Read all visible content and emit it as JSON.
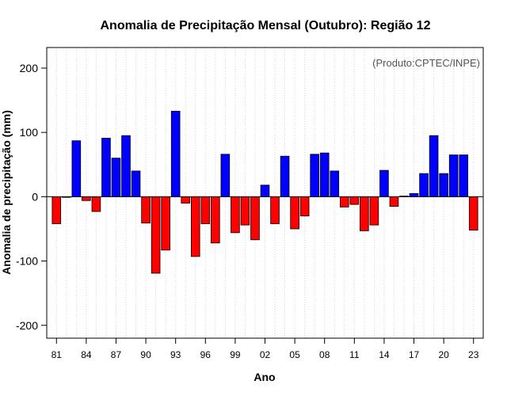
{
  "chart_data": {
    "type": "bar",
    "title": "Anomalia de Precipitação Mensal (Outubro): Região 12",
    "xlabel": "Ano",
    "ylabel": "Anomalia de precipitação (mm)",
    "credit": "(Produto:CPTEC/INPE)",
    "ylim": [
      -220,
      232
    ],
    "yticks": [
      -200,
      -100,
      0,
      100,
      200
    ],
    "x": [
      1981,
      1982,
      1983,
      1984,
      1985,
      1986,
      1987,
      1988,
      1989,
      1990,
      1991,
      1992,
      1993,
      1994,
      1995,
      1996,
      1997,
      1998,
      1999,
      2000,
      2001,
      2002,
      2003,
      2004,
      2005,
      2006,
      2007,
      2008,
      2009,
      2010,
      2011,
      2012,
      2013,
      2014,
      2015,
      2016,
      2017,
      2018,
      2019,
      2020,
      2021,
      2022,
      2023
    ],
    "x_tick_labels": [
      "81",
      "84",
      "87",
      "90",
      "93",
      "96",
      "99",
      "02",
      "05",
      "08",
      "11",
      "14",
      "17",
      "20",
      "23"
    ],
    "values": [
      -42,
      -1,
      87,
      -6,
      -23,
      91,
      60,
      95,
      40,
      -41,
      -119,
      -83,
      133,
      -10,
      -93,
      -42,
      -72,
      66,
      -56,
      -44,
      -67,
      18,
      -42,
      63,
      -50,
      -30,
      66,
      68,
      40,
      -16,
      -12,
      -53,
      -44,
      41,
      -15,
      1,
      5,
      36,
      95,
      36,
      65,
      65,
      -52
    ],
    "colors": {
      "positive": "#0000ff",
      "negative": "#ff0000",
      "zero_line": "#000000",
      "grid": "#d3d3d3"
    }
  }
}
